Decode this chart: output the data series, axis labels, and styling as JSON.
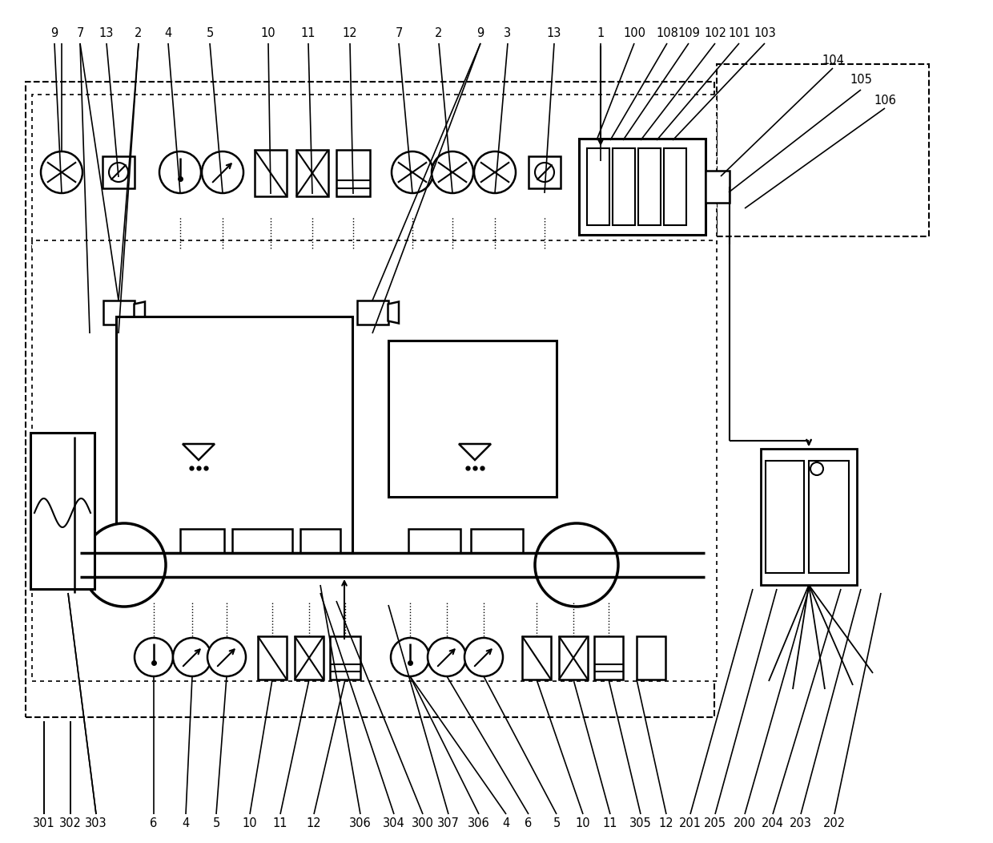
{
  "bg_color": "#ffffff",
  "line_color": "#000000",
  "fig_width": 12.4,
  "fig_height": 10.52,
  "dpi": 100
}
